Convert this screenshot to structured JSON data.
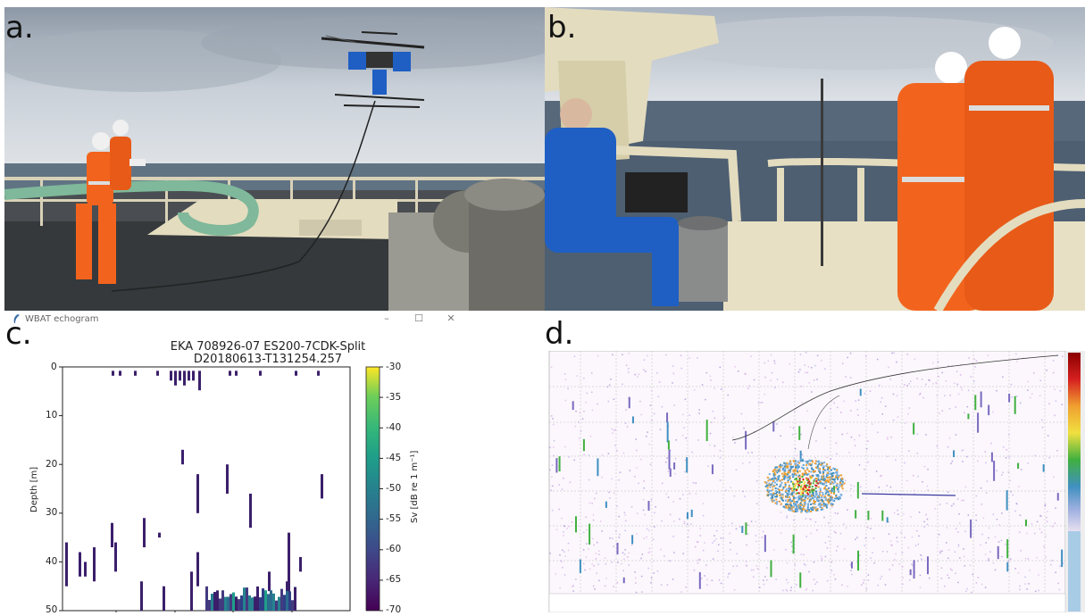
{
  "panels": {
    "a": {
      "letter": "a."
    },
    "b": {
      "letter": "b."
    },
    "c": {
      "letter": "c."
    },
    "d": {
      "letter": "d."
    }
  },
  "window": {
    "title": "WBAT echogram",
    "minimize": "–",
    "maximize": "☐",
    "close": "✕"
  },
  "echogram": {
    "title_line1": "EKA 708926-07 ES200-7CDK-Split",
    "title_line2": "D20180613-T131254.257",
    "ylabel": "Depth [m]",
    "cbar_label": "Sv [dB re 1 m⁻¹]",
    "y_ticks": [
      "0",
      "10",
      "20",
      "30",
      "40",
      "50"
    ],
    "cbar_ticks": [
      "-30",
      "-35",
      "-40",
      "-45",
      "-50",
      "-55",
      "-60",
      "-65",
      "-70"
    ]
  },
  "chart_data": {
    "type": "heatmap",
    "title": "EKA 708926-07 ES200-7CDK-Split D20180613-T131254.257",
    "ylabel": "Depth [m]",
    "ylim": [
      50,
      0
    ],
    "colorbar": {
      "label": "Sv [dB re 1 m⁻¹]",
      "range": [
        -70,
        -30
      ],
      "colormap": "viridis"
    },
    "grid": false
  },
  "colors": {
    "sky": "#c9d0d8",
    "sea": "#5b6f80",
    "deck_yellow": "#e4dcbf",
    "suit_orange": "#f2641d",
    "jacket_blue": "#1f5fc4",
    "echo_dark": "#3b1f6b"
  }
}
